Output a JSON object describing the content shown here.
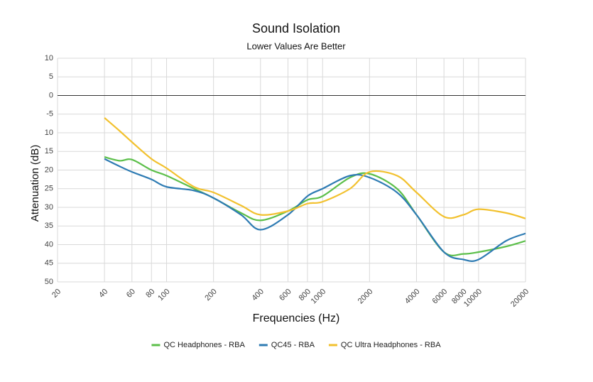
{
  "chart_data": {
    "type": "line",
    "title": "Sound Isolation",
    "subtitle": "Lower Values Are Better",
    "x_label": "Frequencies (Hz)",
    "y_label": "Attenuation (dB)",
    "log_x": true,
    "grid": true,
    "zero_line": true,
    "legend": "bottom",
    "x": [
      40,
      50,
      60,
      80,
      100,
      150,
      200,
      300,
      400,
      600,
      800,
      1000,
      1500,
      2000,
      3000,
      4000,
      6000,
      8000,
      10000,
      15000,
      20000
    ],
    "series": [
      {
        "name": "QC Headphones - RBA",
        "color": "#5cbf4a",
        "values": [
          -16.5,
          -17.5,
          -17.2,
          -20,
          -21.5,
          -25,
          -27.5,
          -31.5,
          -33.5,
          -31,
          -28,
          -27,
          -22,
          -21,
          -25,
          -32,
          -42,
          -42.5,
          -42,
          -40.5,
          -39
        ]
      },
      {
        "name": "QC45 - RBA",
        "color": "#2e7bb3",
        "values": [
          -17,
          -19,
          -20.5,
          -22.5,
          -24.5,
          -25.5,
          -27.5,
          -32,
          -36,
          -32,
          -27,
          -25,
          -21.5,
          -22,
          -26,
          -32,
          -42,
          -44,
          -44,
          -39,
          -37
        ]
      },
      {
        "name": "QC Ultra Headphones - RBA",
        "color": "#f2c12e",
        "values": [
          -6,
          -9.5,
          -12.5,
          -17,
          -19.5,
          -24.5,
          -26,
          -29.5,
          -32,
          -31,
          -29,
          -28.5,
          -25,
          -20.5,
          -21.5,
          -26,
          -32.5,
          -32,
          -30.5,
          -31.5,
          -33
        ]
      }
    ],
    "xlim": [
      20,
      20000
    ],
    "xticks": [
      20,
      40,
      60,
      80,
      100,
      200,
      400,
      600,
      800,
      1000,
      2000,
      4000,
      6000,
      8000,
      10000,
      20000
    ],
    "ylim": [
      -50,
      10
    ],
    "yticks": [
      10,
      5,
      0,
      -5,
      {
        "value": -10,
        "label": "10"
      },
      {
        "value": -15,
        "label": "15"
      },
      {
        "value": -20,
        "label": "20"
      },
      {
        "value": -25,
        "label": "25"
      },
      {
        "value": -30,
        "label": "30"
      },
      {
        "value": -35,
        "label": "35"
      },
      {
        "value": -40,
        "label": "40"
      },
      {
        "value": -45,
        "label": "45"
      },
      {
        "value": -50,
        "label": "50"
      }
    ]
  }
}
